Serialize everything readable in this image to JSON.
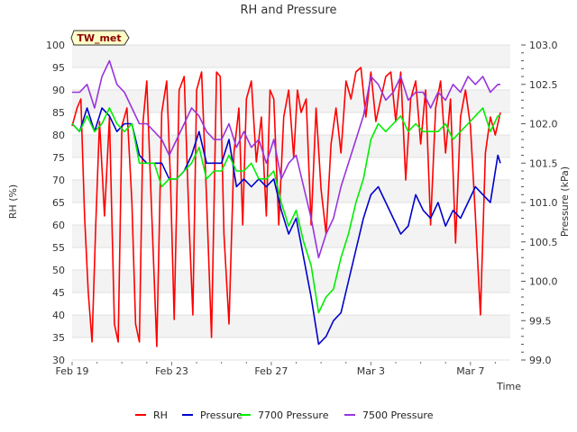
{
  "chart_data": {
    "type": "line",
    "title": "RH and Pressure",
    "site_badge": "TW_met",
    "xlabel": "Time",
    "ylabel": "RH (%)",
    "y2label": "Pressure (kPa)",
    "x_tick_labels": [
      "Feb 19",
      "Feb 23",
      "Feb 27",
      "Mar 3",
      "Mar 7"
    ],
    "x_tick_days": [
      0,
      4,
      8,
      12,
      16
    ],
    "xlim_days": [
      0,
      17.6
    ],
    "ylim": [
      30,
      100
    ],
    "y_ticks": [
      30,
      35,
      40,
      45,
      50,
      55,
      60,
      65,
      70,
      75,
      80,
      85,
      90,
      95,
      100
    ],
    "y2lim": [
      99.0,
      103.0
    ],
    "y2_ticks": [
      "99.0",
      "99.5",
      "100.0",
      "100.5",
      "101.0",
      "101.5",
      "102.0",
      "102.5",
      "103.0"
    ],
    "grid": true,
    "legend_position": "bottom",
    "series": [
      {
        "name": "RH",
        "axis": "left",
        "color": "#ff0000",
        "x": [
          0.0,
          0.2,
          0.35,
          0.5,
          0.65,
          0.8,
          0.95,
          1.1,
          1.3,
          1.5,
          1.7,
          1.85,
          2.0,
          2.2,
          2.4,
          2.55,
          2.7,
          2.85,
          3.0,
          3.2,
          3.4,
          3.6,
          3.8,
          3.95,
          4.1,
          4.3,
          4.5,
          4.7,
          4.85,
          5.0,
          5.2,
          5.4,
          5.6,
          5.8,
          5.95,
          6.1,
          6.3,
          6.5,
          6.7,
          6.85,
          7.0,
          7.2,
          7.4,
          7.6,
          7.8,
          7.95,
          8.1,
          8.3,
          8.5,
          8.7,
          8.9,
          9.05,
          9.2,
          9.4,
          9.6,
          9.8,
          10.0,
          10.2,
          10.4,
          10.6,
          10.8,
          11.0,
          11.2,
          11.4,
          11.6,
          11.8,
          12.0,
          12.2,
          12.4,
          12.6,
          12.8,
          13.0,
          13.2,
          13.4,
          13.6,
          13.8,
          14.0,
          14.2,
          14.4,
          14.6,
          14.8,
          15.0,
          15.2,
          15.4,
          15.6,
          15.8,
          16.0,
          16.2,
          16.4,
          16.6,
          16.8,
          17.0,
          17.2
        ],
        "y": [
          82,
          86,
          88,
          62,
          45,
          34,
          60,
          83,
          62,
          84,
          38,
          34,
          82,
          86,
          65,
          38,
          34,
          83,
          92,
          62,
          33,
          85,
          92,
          70,
          39,
          90,
          93,
          60,
          40,
          90,
          94,
          66,
          35,
          94,
          93,
          58,
          38,
          76,
          86,
          60,
          88,
          92,
          74,
          84,
          62,
          90,
          88,
          60,
          84,
          90,
          75,
          90,
          85,
          88,
          60,
          86,
          68,
          58,
          78,
          86,
          76,
          92,
          88,
          94,
          95,
          84,
          94,
          83,
          88,
          93,
          94,
          83,
          94,
          70,
          88,
          92,
          78,
          90,
          60,
          86,
          92,
          76,
          88,
          56,
          84,
          90,
          82,
          62,
          40,
          76,
          84,
          80,
          85
        ]
      },
      {
        "name": "Pressure",
        "axis": "right",
        "color": "#0000cc",
        "x": [
          0.0,
          0.3,
          0.6,
          0.9,
          1.2,
          1.5,
          1.8,
          2.1,
          2.4,
          2.7,
          3.0,
          3.3,
          3.6,
          3.9,
          4.2,
          4.5,
          4.8,
          5.1,
          5.4,
          5.7,
          6.0,
          6.3,
          6.6,
          6.9,
          7.2,
          7.5,
          7.8,
          8.1,
          8.4,
          8.7,
          9.0,
          9.3,
          9.6,
          9.9,
          10.2,
          10.5,
          10.8,
          11.1,
          11.4,
          11.7,
          12.0,
          12.3,
          12.6,
          12.9,
          13.2,
          13.5,
          13.8,
          14.1,
          14.4,
          14.7,
          15.0,
          15.3,
          15.6,
          15.9,
          16.2,
          16.5,
          16.8,
          17.1,
          17.2
        ],
        "y": [
          102.0,
          101.9,
          102.2,
          101.9,
          102.2,
          102.1,
          101.9,
          102.0,
          102.0,
          101.6,
          101.5,
          101.5,
          101.5,
          101.3,
          101.3,
          101.4,
          101.6,
          101.9,
          101.5,
          101.5,
          101.5,
          101.8,
          101.2,
          101.3,
          101.2,
          101.3,
          101.2,
          101.3,
          100.9,
          100.6,
          100.8,
          100.3,
          99.8,
          99.2,
          99.3,
          99.5,
          99.6,
          100.0,
          100.4,
          100.8,
          101.1,
          101.2,
          101.0,
          100.8,
          100.6,
          100.7,
          101.1,
          100.9,
          100.8,
          101.0,
          100.7,
          100.9,
          100.8,
          101.0,
          101.2,
          101.1,
          101.0,
          101.6,
          101.5
        ]
      },
      {
        "name": "7700 Pressure",
        "axis": "right",
        "color": "#00ee00",
        "x": [
          0.0,
          0.3,
          0.6,
          0.9,
          1.2,
          1.5,
          1.8,
          2.1,
          2.4,
          2.7,
          3.0,
          3.3,
          3.6,
          3.9,
          4.2,
          4.5,
          4.8,
          5.1,
          5.4,
          5.7,
          6.0,
          6.3,
          6.6,
          6.9,
          7.2,
          7.5,
          7.8,
          8.1,
          8.4,
          8.7,
          9.0,
          9.3,
          9.6,
          9.9,
          10.2,
          10.5,
          10.8,
          11.1,
          11.4,
          11.7,
          12.0,
          12.3,
          12.6,
          12.9,
          13.2,
          13.5,
          13.8,
          14.1,
          14.4,
          14.7,
          15.0,
          15.3,
          15.6,
          15.9,
          16.2,
          16.5,
          16.8,
          17.1,
          17.2
        ],
        "y": [
          102.0,
          101.9,
          102.1,
          101.9,
          102.0,
          102.2,
          102.0,
          101.9,
          102.0,
          101.5,
          101.5,
          101.5,
          101.2,
          101.3,
          101.3,
          101.4,
          101.5,
          101.7,
          101.3,
          101.4,
          101.4,
          101.6,
          101.4,
          101.4,
          101.5,
          101.3,
          101.3,
          101.4,
          101.0,
          100.7,
          100.9,
          100.5,
          100.2,
          99.6,
          99.8,
          99.9,
          100.3,
          100.6,
          101.0,
          101.3,
          101.8,
          102.0,
          101.9,
          102.0,
          102.1,
          101.9,
          102.0,
          101.9,
          101.9,
          101.9,
          102.0,
          101.8,
          101.9,
          102.0,
          102.1,
          102.2,
          101.9,
          102.1,
          102.1
        ]
      },
      {
        "name": "7500 Pressure",
        "axis": "right",
        "color": "#9933dd",
        "x": [
          0.0,
          0.3,
          0.6,
          0.9,
          1.2,
          1.5,
          1.8,
          2.1,
          2.4,
          2.7,
          3.0,
          3.3,
          3.6,
          3.9,
          4.2,
          4.5,
          4.8,
          5.1,
          5.4,
          5.7,
          6.0,
          6.3,
          6.6,
          6.9,
          7.2,
          7.5,
          7.8,
          8.1,
          8.4,
          8.7,
          9.0,
          9.3,
          9.6,
          9.9,
          10.2,
          10.5,
          10.8,
          11.1,
          11.4,
          11.7,
          12.0,
          12.3,
          12.6,
          12.9,
          13.2,
          13.5,
          13.8,
          14.1,
          14.4,
          14.7,
          15.0,
          15.3,
          15.6,
          15.9,
          16.2,
          16.5,
          16.8,
          17.1,
          17.2
        ],
        "y": [
          102.4,
          102.4,
          102.5,
          102.2,
          102.6,
          102.8,
          102.5,
          102.4,
          102.2,
          102.0,
          102.0,
          101.9,
          101.8,
          101.6,
          101.8,
          102.0,
          102.2,
          102.1,
          101.9,
          101.8,
          101.8,
          102.0,
          101.7,
          101.9,
          101.7,
          101.8,
          101.5,
          101.8,
          101.3,
          101.5,
          101.6,
          101.2,
          100.8,
          100.3,
          100.6,
          100.8,
          101.2,
          101.5,
          101.8,
          102.1,
          102.6,
          102.5,
          102.3,
          102.4,
          102.6,
          102.3,
          102.4,
          102.4,
          102.2,
          102.4,
          102.3,
          102.5,
          102.4,
          102.6,
          102.5,
          102.6,
          102.4,
          102.5,
          102.5
        ]
      }
    ]
  }
}
